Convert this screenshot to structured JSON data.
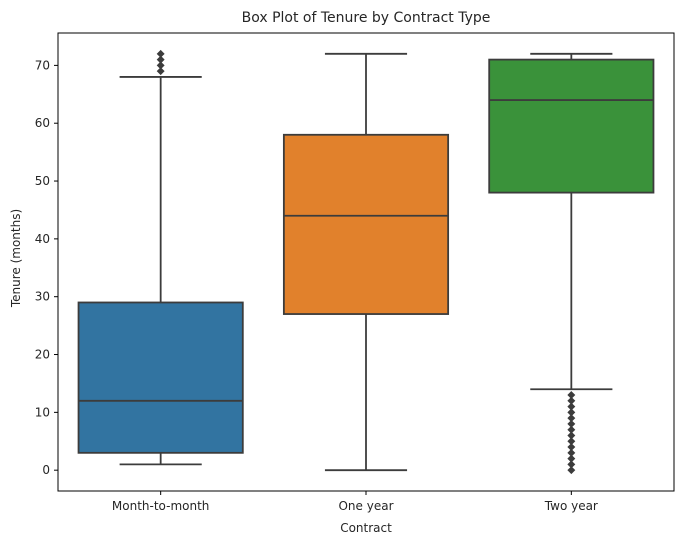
{
  "chart_data": {
    "type": "box",
    "title": "Box Plot of Tenure by Contract Type",
    "xlabel": "Contract",
    "ylabel": "Tenure (months)",
    "ylim": [
      -3.6,
      75.6
    ],
    "yticks": [
      0,
      10,
      20,
      30,
      40,
      50,
      60,
      70
    ],
    "grid": false,
    "categories": [
      "Month-to-month",
      "One year",
      "Two year"
    ],
    "boxes": [
      {
        "category": "Month-to-month",
        "color": "#3274a1",
        "whisker_low": 1,
        "q1": 3,
        "median": 12,
        "q3": 29,
        "whisker_high": 68,
        "outliers": [
          69,
          70,
          71,
          72
        ]
      },
      {
        "category": "One year",
        "color": "#e1812c",
        "whisker_low": 0,
        "q1": 27,
        "median": 44,
        "q3": 58,
        "whisker_high": 72,
        "outliers": []
      },
      {
        "category": "Two year",
        "color": "#3a923a",
        "whisker_low": 14,
        "q1": 48,
        "median": 64,
        "q3": 71,
        "whisker_high": 72,
        "outliers": [
          0,
          1,
          2,
          3,
          4,
          5,
          6,
          7,
          8,
          9,
          10,
          11,
          12,
          13
        ]
      }
    ]
  }
}
